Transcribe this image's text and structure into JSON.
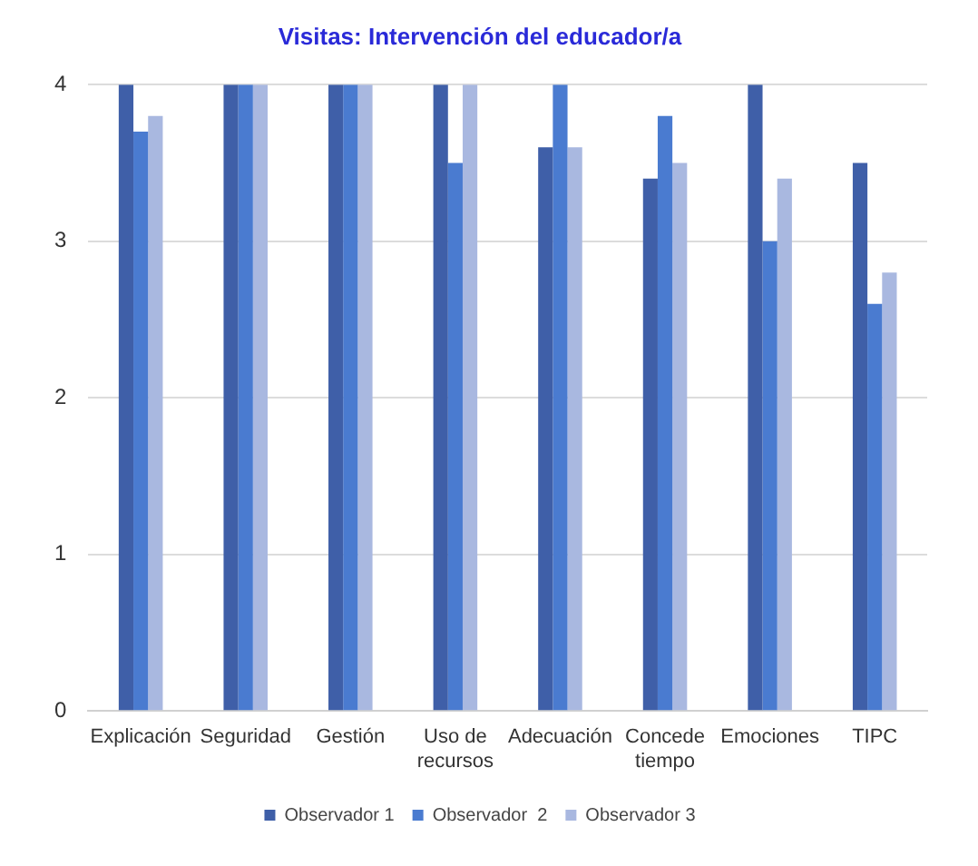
{
  "chart_data": {
    "type": "bar",
    "title": "Visitas: Intervención del educador/a",
    "categories": [
      "Explicación",
      "Seguridad",
      "Gestión",
      "Uso de recursos",
      "Adecuación",
      "Concede tiempo",
      "Emociones",
      "TIPC"
    ],
    "series": [
      {
        "name": "Observador 1",
        "color": "#3f5fa8",
        "values": [
          4,
          4,
          4,
          4,
          3.6,
          3.4,
          4,
          3.5
        ]
      },
      {
        "name": "Observador  2",
        "color": "#4a7bd0",
        "values": [
          3.7,
          4,
          4,
          3.5,
          4,
          3.8,
          3,
          2.6
        ]
      },
      {
        "name": "Observador 3",
        "color": "#a9b8e0",
        "values": [
          3.8,
          4,
          4,
          4,
          3.6,
          3.5,
          3.4,
          2.8
        ]
      }
    ],
    "ylim": [
      0,
      4
    ],
    "yticks": [
      0,
      1,
      2,
      3,
      4
    ],
    "grid": "y",
    "legend": "bottom"
  }
}
